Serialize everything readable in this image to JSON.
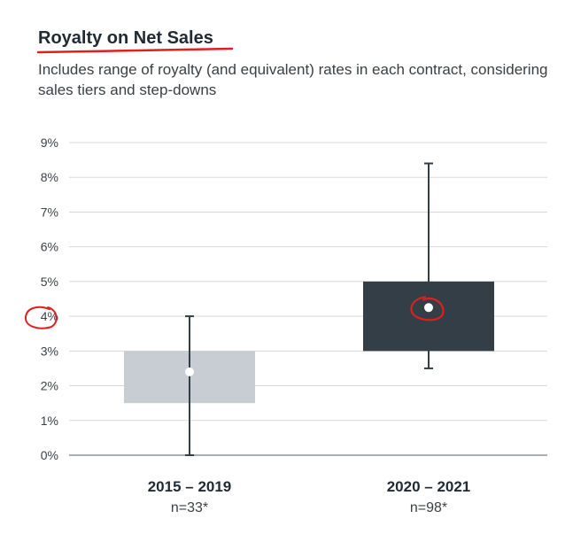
{
  "chart_data": {
    "type": "box",
    "title": "Royalty on Net Sales",
    "subtitle": "Includes range of royalty (and equivalent) rates in each contract, considering sales tiers and step-downs",
    "ylim": [
      0,
      9
    ],
    "yticks": [
      {
        "value": 0,
        "label": "0%"
      },
      {
        "value": 1,
        "label": "1%"
      },
      {
        "value": 2,
        "label": "2%"
      },
      {
        "value": 3,
        "label": "3%"
      },
      {
        "value": 4,
        "label": "4%"
      },
      {
        "value": 5,
        "label": "5%"
      },
      {
        "value": 6,
        "label": "6%"
      },
      {
        "value": 7,
        "label": "7%"
      },
      {
        "value": 8,
        "label": "8%"
      },
      {
        "value": 9,
        "label": "9%"
      }
    ],
    "series": [
      {
        "category": "2015 – 2019",
        "n_label": "n=33*",
        "min": 0,
        "q1": 1.5,
        "q3": 3.0,
        "max": 4.0,
        "mean": 2.4,
        "color": "#c7cdd2"
      },
      {
        "category": "2020 – 2021",
        "n_label": "n=98*",
        "min": 2.5,
        "q1": 3.0,
        "q3": 5.0,
        "max": 8.4,
        "mean": 4.25,
        "color": "#333e46"
      }
    ],
    "annotations": [
      {
        "type": "red-underline",
        "target": "title"
      },
      {
        "type": "red-circle",
        "target": "y-tick",
        "value": 4
      },
      {
        "type": "red-circle",
        "target": "mean-point",
        "series": 1
      }
    ]
  },
  "colors": {
    "annotation": "#e01e1e",
    "whisker": "#333e46",
    "grid": "#d5d8db",
    "axis": "#555d63"
  }
}
